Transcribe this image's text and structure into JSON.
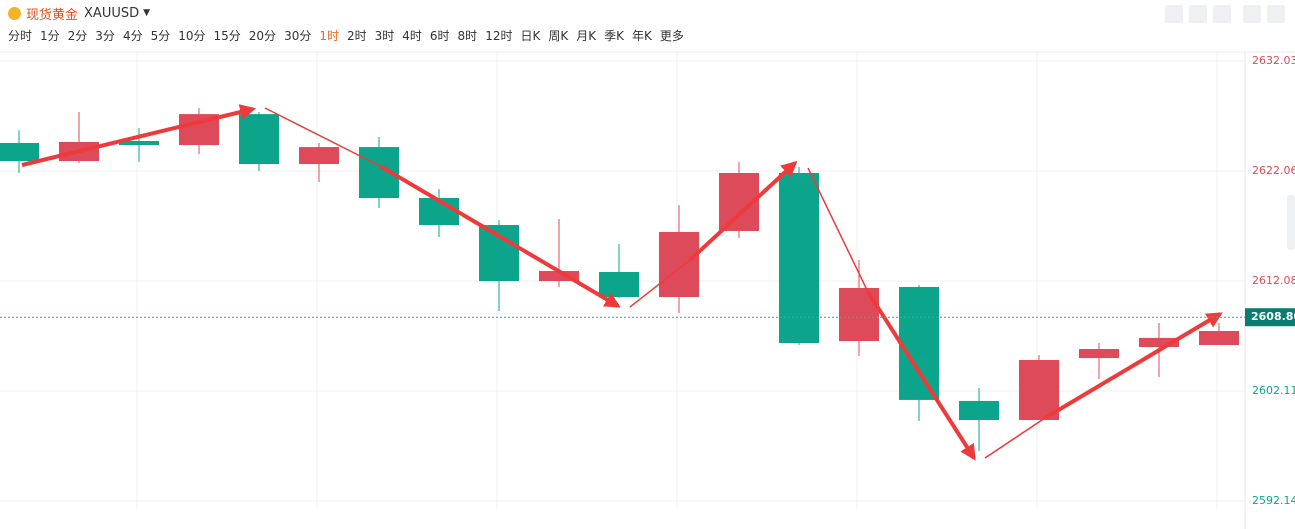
{
  "toolbar": {
    "name": "现货黄金",
    "symbol": "XAUUSD",
    "intervals": [
      "分时",
      "1分",
      "2分",
      "3分",
      "4分",
      "5分",
      "10分",
      "15分",
      "20分",
      "30分",
      "1时",
      "2时",
      "3时",
      "4时",
      "6时",
      "8时",
      "12时",
      "日K",
      "周K",
      "月K",
      "季K",
      "年K",
      "更多"
    ],
    "active": 10
  },
  "chart_data": {
    "type": "candlestick",
    "up_color": "#dd4b5a",
    "down_color": "#0ca58b",
    "open": [
      2624.6,
      2622.96,
      2624.78,
      2624.41,
      2627.22,
      2622.69,
      2624.23,
      2619.61,
      2617.16,
      2612.08,
      2612.9,
      2610.63,
      2616.62,
      2621.88,
      2606.64,
      2611.54,
      2601.21,
      2599.48,
      2605.1,
      2606.1,
      2606.28
    ],
    "high": [
      2625.77,
      2627.41,
      2625.96,
      2627.77,
      2627.41,
      2624.6,
      2625.14,
      2620.43,
      2617.61,
      2617.71,
      2615.44,
      2618.97,
      2622.87,
      2622.42,
      2613.99,
      2611.72,
      2602.38,
      2605.38,
      2606.46,
      2608.28,
      2608.28
    ],
    "low": [
      2621.88,
      2622.78,
      2622.87,
      2623.6,
      2622.06,
      2621.06,
      2618.7,
      2616.07,
      2609.36,
      2611.54,
      2610.54,
      2609.18,
      2615.98,
      2606.28,
      2605.28,
      2599.39,
      2596.67,
      2599.48,
      2603.2,
      2603.38,
      2606.28
    ],
    "close": [
      2622.96,
      2624.69,
      2624.41,
      2627.22,
      2622.69,
      2624.23,
      2619.61,
      2617.16,
      2612.08,
      2612.99,
      2610.63,
      2616.53,
      2621.88,
      2606.46,
      2611.45,
      2601.3,
      2599.48,
      2604.92,
      2605.92,
      2606.92,
      2607.55
    ],
    "ylim": [
      2591.41,
      2632.85
    ],
    "yticks": [
      2592.14,
      2602.11,
      2612.08,
      2622.06,
      2632.03
    ],
    "last_price": {
      "value": 2608.8,
      "label": "2608.80"
    },
    "grid": true
  }
}
